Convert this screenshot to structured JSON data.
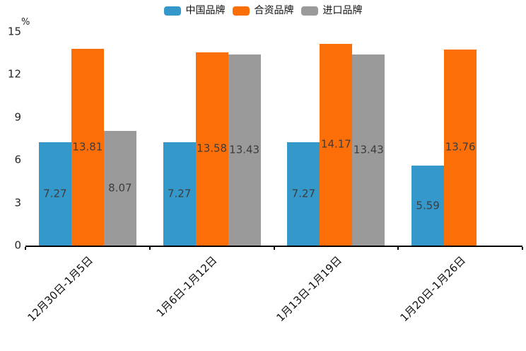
{
  "chart_data": {
    "type": "bar",
    "title": "",
    "xlabel": "",
    "ylabel": "%",
    "ylim": [
      0,
      15
    ],
    "yticks": [
      0,
      3,
      6,
      9,
      12,
      15
    ],
    "grid": false,
    "legend_position": "top-center",
    "bar_value_labels": true,
    "categories": [
      "12月30日-1月5日",
      "1月6日-1月12日",
      "1月13日-1月19日",
      "1月20日-1月26日"
    ],
    "series": [
      {
        "name": "中国品牌",
        "color": "#3498cb",
        "values": [
          7.27,
          7.27,
          7.27,
          5.59
        ]
      },
      {
        "name": "合资品牌",
        "color": "#fc6e08",
        "values": [
          13.81,
          13.58,
          14.17,
          13.76
        ]
      },
      {
        "name": "进口品牌",
        "color": "#9a9a9a",
        "values": [
          8.07,
          13.43,
          13.43,
          null
        ]
      }
    ],
    "colors": {
      "axis": "#000000",
      "tick_label": "#262626",
      "bar_label": "#3d3d3d",
      "background": "#ffffff"
    }
  }
}
